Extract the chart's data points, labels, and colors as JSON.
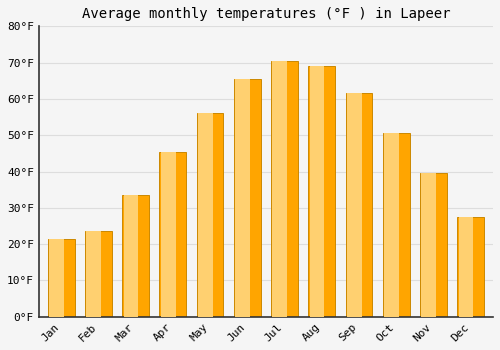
{
  "title": "Average monthly temperatures (°F ) in Lapeer",
  "months": [
    "Jan",
    "Feb",
    "Mar",
    "Apr",
    "May",
    "Jun",
    "Jul",
    "Aug",
    "Sep",
    "Oct",
    "Nov",
    "Dec"
  ],
  "values": [
    21.5,
    23.5,
    33.5,
    45.5,
    56.0,
    65.5,
    70.5,
    69.0,
    61.5,
    50.5,
    39.5,
    27.5
  ],
  "bar_color_main": "#FFA500",
  "bar_color_light": "#FFD070",
  "bar_edge_color": "#CC8800",
  "background_color": "#f5f5f5",
  "plot_bg_color": "#f5f5f5",
  "grid_color": "#dddddd",
  "spine_color": "#333333",
  "ylim": [
    0,
    80
  ],
  "yticks": [
    0,
    10,
    20,
    30,
    40,
    50,
    60,
    70,
    80
  ],
  "ytick_labels": [
    "0°F",
    "10°F",
    "20°F",
    "30°F",
    "40°F",
    "50°F",
    "60°F",
    "70°F",
    "80°F"
  ],
  "title_fontsize": 10,
  "tick_fontsize": 8,
  "font_family": "monospace"
}
